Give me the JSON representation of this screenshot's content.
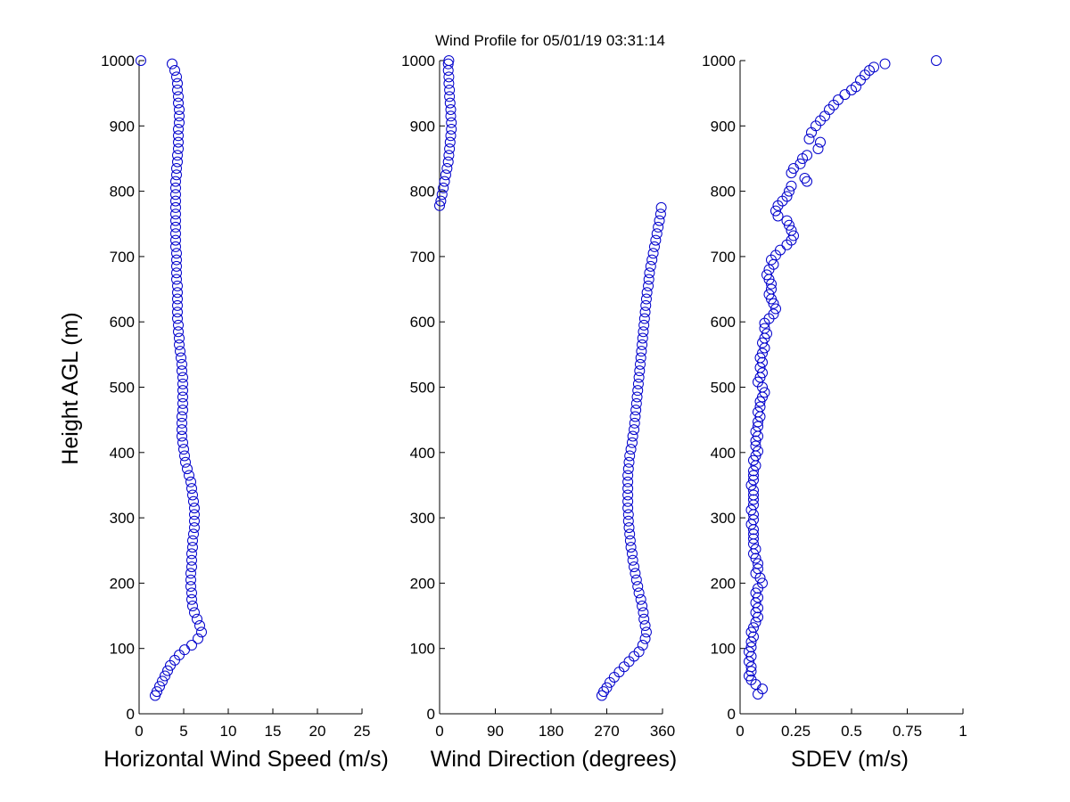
{
  "title": "Wind Profile for  05/01/19 03:31:14",
  "chart_data": [
    {
      "type": "scatter",
      "name": "speed",
      "xlabel": "Horizontal Wind Speed (m/s)",
      "ylabel": "Height AGL (m)",
      "xlim": [
        0,
        25
      ],
      "ylim": [
        0,
        1000
      ],
      "xticks": [
        0,
        5,
        10,
        15,
        20,
        25
      ],
      "yticks": [
        0,
        100,
        200,
        300,
        400,
        500,
        600,
        700,
        800,
        900,
        1000
      ],
      "grid": false,
      "marker_color": "#0000cc",
      "points": [
        [
          0.2,
          1000
        ],
        [
          3.7,
          995
        ],
        [
          4.0,
          985
        ],
        [
          4.2,
          975
        ],
        [
          4.3,
          965
        ],
        [
          4.3,
          955
        ],
        [
          4.4,
          945
        ],
        [
          4.4,
          935
        ],
        [
          4.5,
          925
        ],
        [
          4.5,
          915
        ],
        [
          4.5,
          905
        ],
        [
          4.4,
          895
        ],
        [
          4.4,
          885
        ],
        [
          4.4,
          875
        ],
        [
          4.4,
          865
        ],
        [
          4.3,
          855
        ],
        [
          4.3,
          845
        ],
        [
          4.2,
          835
        ],
        [
          4.2,
          825
        ],
        [
          4.1,
          815
        ],
        [
          4.1,
          805
        ],
        [
          4.1,
          795
        ],
        [
          4.1,
          785
        ],
        [
          4.1,
          775
        ],
        [
          4.1,
          765
        ],
        [
          4.1,
          755
        ],
        [
          4.1,
          745
        ],
        [
          4.1,
          735
        ],
        [
          4.1,
          725
        ],
        [
          4.1,
          715
        ],
        [
          4.2,
          705
        ],
        [
          4.2,
          695
        ],
        [
          4.2,
          685
        ],
        [
          4.2,
          675
        ],
        [
          4.2,
          665
        ],
        [
          4.3,
          655
        ],
        [
          4.3,
          645
        ],
        [
          4.3,
          635
        ],
        [
          4.3,
          625
        ],
        [
          4.3,
          615
        ],
        [
          4.3,
          605
        ],
        [
          4.4,
          595
        ],
        [
          4.4,
          585
        ],
        [
          4.5,
          575
        ],
        [
          4.5,
          565
        ],
        [
          4.6,
          555
        ],
        [
          4.7,
          545
        ],
        [
          4.8,
          535
        ],
        [
          4.8,
          525
        ],
        [
          4.9,
          515
        ],
        [
          4.9,
          505
        ],
        [
          4.9,
          495
        ],
        [
          4.9,
          485
        ],
        [
          4.9,
          475
        ],
        [
          4.9,
          465
        ],
        [
          4.8,
          455
        ],
        [
          4.8,
          445
        ],
        [
          4.8,
          435
        ],
        [
          4.8,
          425
        ],
        [
          4.9,
          415
        ],
        [
          5.0,
          405
        ],
        [
          5.1,
          395
        ],
        [
          5.2,
          385
        ],
        [
          5.4,
          375
        ],
        [
          5.6,
          365
        ],
        [
          5.8,
          355
        ],
        [
          5.9,
          345
        ],
        [
          6.0,
          335
        ],
        [
          6.1,
          325
        ],
        [
          6.2,
          315
        ],
        [
          6.2,
          305
        ],
        [
          6.2,
          295
        ],
        [
          6.2,
          285
        ],
        [
          6.1,
          275
        ],
        [
          6.0,
          265
        ],
        [
          6.0,
          255
        ],
        [
          5.9,
          245
        ],
        [
          5.9,
          235
        ],
        [
          5.9,
          225
        ],
        [
          5.8,
          215
        ],
        [
          5.8,
          205
        ],
        [
          5.8,
          195
        ],
        [
          5.9,
          185
        ],
        [
          5.9,
          175
        ],
        [
          6.0,
          165
        ],
        [
          6.2,
          155
        ],
        [
          6.5,
          145
        ],
        [
          6.8,
          135
        ],
        [
          7.0,
          125
        ],
        [
          6.6,
          115
        ],
        [
          5.9,
          105
        ],
        [
          5.1,
          98
        ],
        [
          4.5,
          90
        ],
        [
          4.0,
          82
        ],
        [
          3.5,
          74
        ],
        [
          3.2,
          66
        ],
        [
          2.9,
          58
        ],
        [
          2.6,
          50
        ],
        [
          2.3,
          42
        ],
        [
          2.0,
          34
        ],
        [
          1.8,
          28
        ]
      ]
    },
    {
      "type": "scatter",
      "name": "direction",
      "xlabel": "Wind Direction (degrees)",
      "ylabel": "",
      "xlim": [
        0,
        360
      ],
      "ylim": [
        0,
        1000
      ],
      "xticks": [
        0,
        90,
        180,
        270,
        360
      ],
      "yticks": [
        0,
        100,
        200,
        300,
        400,
        500,
        600,
        700,
        800,
        900,
        1000
      ],
      "grid": false,
      "marker_color": "#0000cc",
      "points": [
        [
          15,
          1000
        ],
        [
          14,
          995
        ],
        [
          14,
          985
        ],
        [
          15,
          975
        ],
        [
          15,
          965
        ],
        [
          16,
          955
        ],
        [
          16,
          945
        ],
        [
          17,
          935
        ],
        [
          18,
          925
        ],
        [
          18,
          915
        ],
        [
          19,
          905
        ],
        [
          19,
          895
        ],
        [
          18,
          885
        ],
        [
          17,
          875
        ],
        [
          16,
          865
        ],
        [
          15,
          855
        ],
        [
          14,
          845
        ],
        [
          12,
          835
        ],
        [
          10,
          825
        ],
        [
          8,
          815
        ],
        [
          6,
          805
        ],
        [
          4,
          795
        ],
        [
          2,
          785
        ],
        [
          0,
          778
        ],
        [
          358,
          775
        ],
        [
          357,
          765
        ],
        [
          355,
          755
        ],
        [
          353,
          745
        ],
        [
          351,
          735
        ],
        [
          349,
          725
        ],
        [
          347,
          715
        ],
        [
          345,
          705
        ],
        [
          343,
          695
        ],
        [
          341,
          685
        ],
        [
          339,
          675
        ],
        [
          338,
          665
        ],
        [
          337,
          655
        ],
        [
          335,
          645
        ],
        [
          334,
          635
        ],
        [
          333,
          625
        ],
        [
          332,
          615
        ],
        [
          331,
          605
        ],
        [
          330,
          595
        ],
        [
          329,
          585
        ],
        [
          328,
          575
        ],
        [
          327,
          565
        ],
        [
          326,
          555
        ],
        [
          325,
          545
        ],
        [
          324,
          535
        ],
        [
          323,
          525
        ],
        [
          322,
          515
        ],
        [
          321,
          505
        ],
        [
          320,
          495
        ],
        [
          319,
          485
        ],
        [
          318,
          475
        ],
        [
          317,
          465
        ],
        [
          316,
          455
        ],
        [
          315,
          445
        ],
        [
          314,
          435
        ],
        [
          312,
          425
        ],
        [
          311,
          415
        ],
        [
          309,
          405
        ],
        [
          307,
          395
        ],
        [
          306,
          385
        ],
        [
          305,
          375
        ],
        [
          304,
          365
        ],
        [
          304,
          355
        ],
        [
          304,
          345
        ],
        [
          304,
          335
        ],
        [
          304,
          325
        ],
        [
          304,
          315
        ],
        [
          305,
          305
        ],
        [
          305,
          295
        ],
        [
          306,
          285
        ],
        [
          307,
          275
        ],
        [
          308,
          265
        ],
        [
          309,
          255
        ],
        [
          311,
          245
        ],
        [
          312,
          235
        ],
        [
          314,
          225
        ],
        [
          316,
          215
        ],
        [
          318,
          205
        ],
        [
          320,
          195
        ],
        [
          322,
          185
        ],
        [
          325,
          175
        ],
        [
          327,
          165
        ],
        [
          329,
          155
        ],
        [
          330,
          145
        ],
        [
          332,
          135
        ],
        [
          334,
          125
        ],
        [
          332,
          115
        ],
        [
          328,
          105
        ],
        [
          322,
          95
        ],
        [
          314,
          88
        ],
        [
          306,
          80
        ],
        [
          298,
          72
        ],
        [
          290,
          64
        ],
        [
          282,
          56
        ],
        [
          275,
          48
        ],
        [
          270,
          40
        ],
        [
          265,
          34
        ],
        [
          262,
          28
        ]
      ]
    },
    {
      "type": "scatter",
      "name": "sdev",
      "xlabel": "SDEV  (m/s)",
      "ylabel": "",
      "xlim": [
        0,
        1
      ],
      "ylim": [
        0,
        1000
      ],
      "xticks": [
        0,
        0.25,
        0.5,
        0.75,
        1
      ],
      "yticks": [
        0,
        100,
        200,
        300,
        400,
        500,
        600,
        700,
        800,
        900,
        1000
      ],
      "grid": false,
      "marker_color": "#0000cc",
      "points": [
        [
          0.88,
          1000
        ],
        [
          0.65,
          995
        ],
        [
          0.6,
          990
        ],
        [
          0.58,
          985
        ],
        [
          0.56,
          978
        ],
        [
          0.54,
          970
        ],
        [
          0.52,
          960
        ],
        [
          0.5,
          955
        ],
        [
          0.47,
          948
        ],
        [
          0.44,
          940
        ],
        [
          0.42,
          932
        ],
        [
          0.4,
          925
        ],
        [
          0.38,
          915
        ],
        [
          0.36,
          908
        ],
        [
          0.34,
          900
        ],
        [
          0.32,
          890
        ],
        [
          0.31,
          880
        ],
        [
          0.36,
          875
        ],
        [
          0.35,
          865
        ],
        [
          0.3,
          855
        ],
        [
          0.28,
          850
        ],
        [
          0.27,
          842
        ],
        [
          0.24,
          835
        ],
        [
          0.23,
          828
        ],
        [
          0.29,
          820
        ],
        [
          0.3,
          815
        ],
        [
          0.23,
          808
        ],
        [
          0.22,
          800
        ],
        [
          0.21,
          792
        ],
        [
          0.19,
          785
        ],
        [
          0.17,
          778
        ],
        [
          0.16,
          770
        ],
        [
          0.17,
          762
        ],
        [
          0.21,
          755
        ],
        [
          0.22,
          748
        ],
        [
          0.23,
          740
        ],
        [
          0.24,
          732
        ],
        [
          0.23,
          725
        ],
        [
          0.21,
          718
        ],
        [
          0.18,
          710
        ],
        [
          0.16,
          702
        ],
        [
          0.14,
          695
        ],
        [
          0.15,
          688
        ],
        [
          0.13,
          680
        ],
        [
          0.12,
          672
        ],
        [
          0.13,
          665
        ],
        [
          0.14,
          658
        ],
        [
          0.14,
          650
        ],
        [
          0.13,
          642
        ],
        [
          0.14,
          635
        ],
        [
          0.15,
          628
        ],
        [
          0.16,
          620
        ],
        [
          0.15,
          612
        ],
        [
          0.13,
          605
        ],
        [
          0.11,
          598
        ],
        [
          0.11,
          590
        ],
        [
          0.12,
          582
        ],
        [
          0.11,
          575
        ],
        [
          0.1,
          568
        ],
        [
          0.11,
          560
        ],
        [
          0.1,
          552
        ],
        [
          0.09,
          545
        ],
        [
          0.1,
          538
        ],
        [
          0.09,
          530
        ],
        [
          0.1,
          522
        ],
        [
          0.09,
          515
        ],
        [
          0.08,
          508
        ],
        [
          0.1,
          500
        ],
        [
          0.11,
          492
        ],
        [
          0.1,
          485
        ],
        [
          0.09,
          478
        ],
        [
          0.09,
          470
        ],
        [
          0.08,
          462
        ],
        [
          0.09,
          455
        ],
        [
          0.08,
          447
        ],
        [
          0.08,
          440
        ],
        [
          0.07,
          432
        ],
        [
          0.08,
          425
        ],
        [
          0.07,
          418
        ],
        [
          0.07,
          410
        ],
        [
          0.08,
          402
        ],
        [
          0.07,
          395
        ],
        [
          0.06,
          388
        ],
        [
          0.07,
          380
        ],
        [
          0.06,
          372
        ],
        [
          0.06,
          365
        ],
        [
          0.06,
          358
        ],
        [
          0.05,
          350
        ],
        [
          0.06,
          342
        ],
        [
          0.06,
          335
        ],
        [
          0.06,
          328
        ],
        [
          0.06,
          320
        ],
        [
          0.05,
          312
        ],
        [
          0.06,
          305
        ],
        [
          0.06,
          297
        ],
        [
          0.05,
          290
        ],
        [
          0.06,
          282
        ],
        [
          0.06,
          275
        ],
        [
          0.06,
          268
        ],
        [
          0.06,
          260
        ],
        [
          0.07,
          252
        ],
        [
          0.06,
          245
        ],
        [
          0.07,
          238
        ],
        [
          0.08,
          230
        ],
        [
          0.08,
          222
        ],
        [
          0.07,
          215
        ],
        [
          0.09,
          208
        ],
        [
          0.1,
          200
        ],
        [
          0.08,
          192
        ],
        [
          0.07,
          185
        ],
        [
          0.08,
          178
        ],
        [
          0.07,
          170
        ],
        [
          0.08,
          162
        ],
        [
          0.07,
          155
        ],
        [
          0.08,
          148
        ],
        [
          0.07,
          140
        ],
        [
          0.06,
          132
        ],
        [
          0.05,
          125
        ],
        [
          0.06,
          118
        ],
        [
          0.05,
          110
        ],
        [
          0.05,
          102
        ],
        [
          0.04,
          95
        ],
        [
          0.05,
          88
        ],
        [
          0.04,
          80
        ],
        [
          0.05,
          72
        ],
        [
          0.05,
          65
        ],
        [
          0.04,
          58
        ],
        [
          0.05,
          52
        ],
        [
          0.07,
          45
        ],
        [
          0.1,
          38
        ],
        [
          0.08,
          30
        ]
      ]
    }
  ]
}
